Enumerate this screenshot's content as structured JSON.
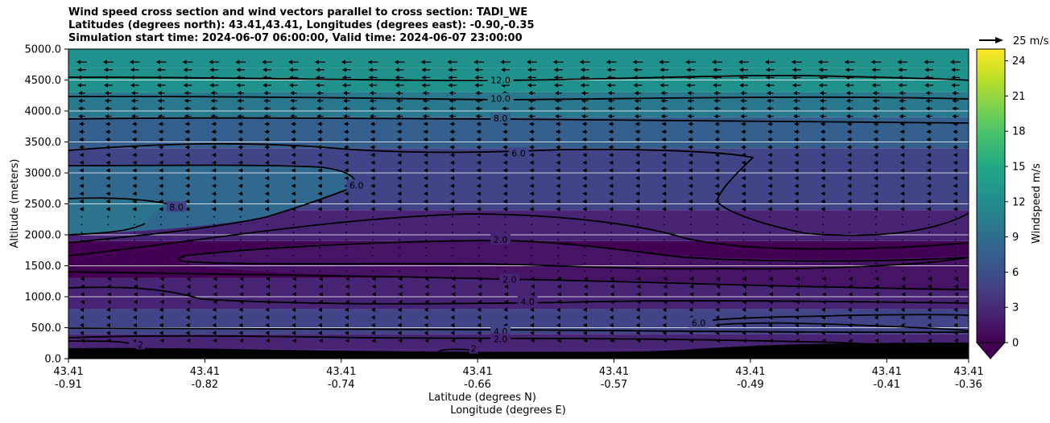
{
  "title_lines": [
    "Wind speed cross section and wind vectors parallel to cross section: TADI_WE",
    "Latitudes (degrees north): 43.41,43.41, Longitudes (degrees east): -0.90,-0.35",
    "Simulation start time: 2024-06-07 06:00:00, Valid time: 2024-06-07 23:00:00"
  ],
  "chart_data": {
    "type": "heatmap",
    "subtype": "filled-contour cross section with wind vectors",
    "xlabel_line1": "Latitude (degrees N)",
    "xlabel_line2": "Longitude (degrees E)",
    "ylabel": "Altitude (meters)",
    "ylim": [
      0,
      5000
    ],
    "y_ticks": [
      0,
      500,
      1000,
      1500,
      2000,
      2500,
      3000,
      3500,
      4000,
      4500,
      5000
    ],
    "y_tick_labels": [
      "0.0",
      "500.0",
      "1000.0",
      "1500.0",
      "2000.0",
      "2500.0",
      "3000.0",
      "3500.0",
      "4000.0",
      "4500.0",
      "5000.0"
    ],
    "x_ticks": [
      {
        "lat": "43.41",
        "lon": "-0.91",
        "frac": 0.0
      },
      {
        "lat": "43.41",
        "lon": "-0.82",
        "frac": 0.1515
      },
      {
        "lat": "43.41",
        "lon": "-0.74",
        "frac": 0.303
      },
      {
        "lat": "43.41",
        "lon": "-0.66",
        "frac": 0.4545
      },
      {
        "lat": "43.41",
        "lon": "-0.57",
        "frac": 0.606
      },
      {
        "lat": "43.41",
        "lon": "-0.49",
        "frac": 0.7575
      },
      {
        "lat": "43.41",
        "lon": "-0.41",
        "frac": 0.909
      },
      {
        "lat": "43.41",
        "lon": "-0.36",
        "frac": 1.0
      }
    ],
    "colorbar": {
      "label": "Windspeed m/s",
      "range": [
        0,
        25
      ],
      "ticks": [
        "0",
        "3",
        "6",
        "9",
        "12",
        "15",
        "18",
        "21",
        "24"
      ],
      "colormap": [
        "#440154",
        "#482475",
        "#414487",
        "#355f8d",
        "#2a788e",
        "#21918c",
        "#22a884",
        "#44bf70",
        "#7ad151",
        "#bddf26",
        "#fde725"
      ]
    },
    "wind_scale_label": "25 m/s",
    "horizontal_bands": [
      {
        "from": 0,
        "to": 150,
        "speed": 1.5
      },
      {
        "from": 150,
        "to": 400,
        "speed": 3.5
      },
      {
        "from": 400,
        "to": 800,
        "speed": 5.0
      },
      {
        "from": 800,
        "to": 1300,
        "speed": 3.2
      },
      {
        "from": 1300,
        "to": 1900,
        "speed": 1.0
      },
      {
        "from": 1900,
        "to": 2400,
        "speed": 3.0
      },
      {
        "from": 2400,
        "to": 3400,
        "speed": 6.0
      },
      {
        "from": 3400,
        "to": 3900,
        "speed": 7.0
      },
      {
        "from": 3900,
        "to": 4300,
        "speed": 9.0
      },
      {
        "from": 4300,
        "to": 4700,
        "speed": 11.5
      },
      {
        "from": 4700,
        "to": 5000,
        "speed": 13.5
      }
    ],
    "contour_labels": [
      {
        "text": "12.0",
        "frac": 0.48,
        "alt": 4500
      },
      {
        "text": "10.0",
        "frac": 0.48,
        "alt": 4200
      },
      {
        "text": "8.0",
        "frac": 0.48,
        "alt": 3880
      },
      {
        "text": "6.0",
        "frac": 0.5,
        "alt": 3320
      },
      {
        "text": "6.0",
        "frac": 0.32,
        "alt": 2800
      },
      {
        "text": "8.0",
        "frac": 0.12,
        "alt": 2450
      },
      {
        "text": "2.0",
        "frac": 0.48,
        "alt": 1920
      },
      {
        "text": "2.0",
        "frac": 0.49,
        "alt": 1280
      },
      {
        "text": "4.0",
        "frac": 0.51,
        "alt": 920
      },
      {
        "text": "6.0",
        "frac": 0.7,
        "alt": 580
      },
      {
        "text": "4.0",
        "frac": 0.48,
        "alt": 440
      },
      {
        "text": "2.0",
        "frac": 0.48,
        "alt": 320
      },
      {
        "text": "2",
        "frac": 0.08,
        "alt": 230
      },
      {
        "text": "2",
        "frac": 0.45,
        "alt": 160
      }
    ]
  }
}
